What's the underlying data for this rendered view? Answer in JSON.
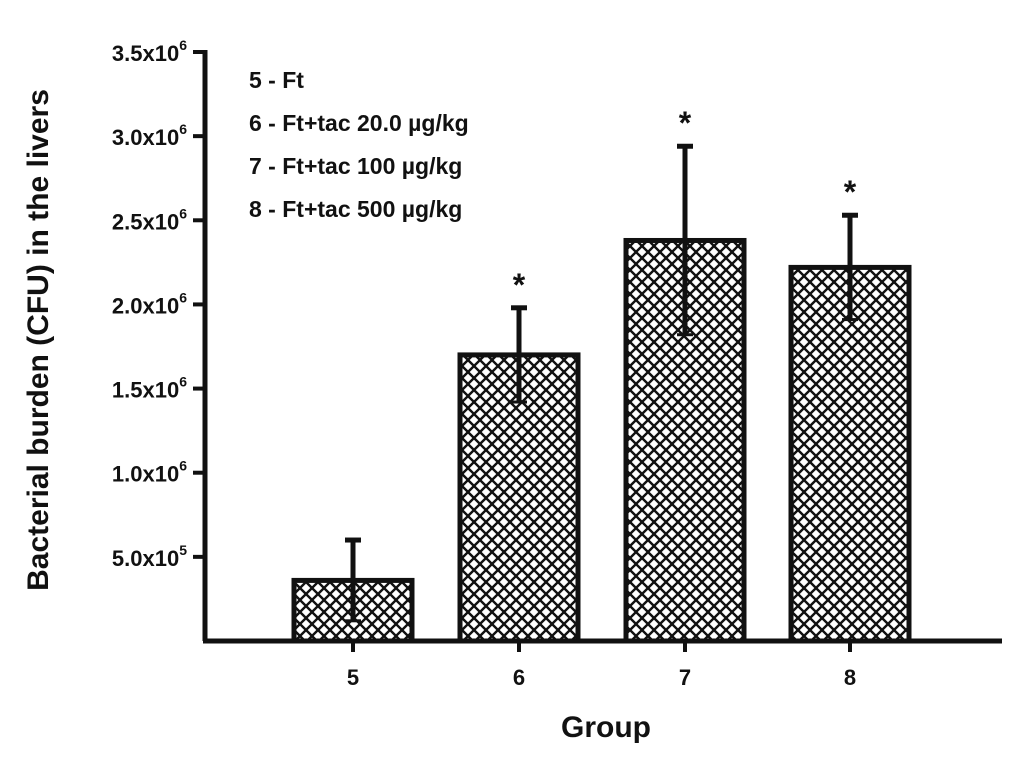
{
  "chart_data": {
    "type": "bar",
    "xlabel": "Group",
    "ylabel": "Bacterial burden (CFU) in the livers",
    "ylim": [
      0,
      3500000
    ],
    "categories": [
      "5",
      "6",
      "7",
      "8"
    ],
    "values": [
      360000,
      1700000,
      2380000,
      2220000
    ],
    "errors": [
      240000,
      280000,
      560000,
      310000
    ],
    "significance": [
      "",
      "*",
      "*",
      "*"
    ],
    "bar_pattern": "crosshatch",
    "yticks": [
      {
        "value": 500000,
        "base": "5.0x10",
        "exp": "5"
      },
      {
        "value": 1000000,
        "base": "1.0x10",
        "exp": "6"
      },
      {
        "value": 1500000,
        "base": "1.5x10",
        "exp": "6"
      },
      {
        "value": 2000000,
        "base": "2.0x10",
        "exp": "6"
      },
      {
        "value": 2500000,
        "base": "2.5x10",
        "exp": "6"
      },
      {
        "value": 3000000,
        "base": "3.0x10",
        "exp": "6"
      },
      {
        "value": 3500000,
        "base": "3.5x10",
        "exp": "6"
      }
    ],
    "legend": [
      "5 - Ft",
      "6 - Ft+tac 20.0 µg/kg",
      "7 - Ft+tac 100 µg/kg",
      "8 - Ft+tac 500 µg/kg"
    ],
    "legend_position": "top-left",
    "grid": false,
    "colors": {
      "ink": "#111111",
      "background": "#ffffff"
    }
  }
}
